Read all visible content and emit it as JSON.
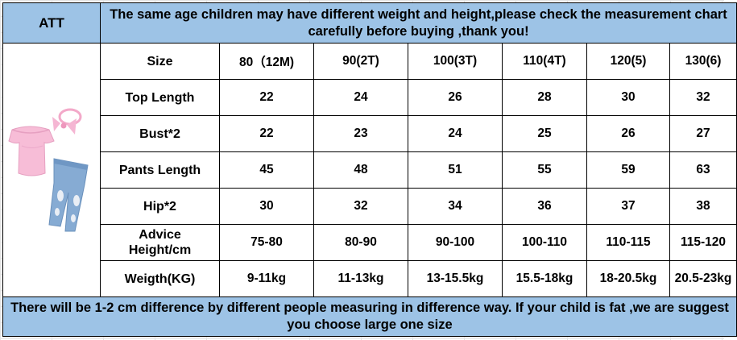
{
  "brand": "ATT",
  "header_notice": "The same age children may have different weight and height,please check the measurement chart carefully before buying ,thank you!",
  "footer_notice": "There will be 1-2 cm difference by different people measuring in difference way. If your child is fat ,we are suggest you choose large one size",
  "table": {
    "columns": [
      "80（12M)",
      "90(2T)",
      "100(3T)",
      "110(4T)",
      "120(5)",
      "130(6)"
    ],
    "rows": [
      {
        "label": "Size",
        "values": []
      },
      {
        "label": "Top Length",
        "values": [
          "22",
          "24",
          "26",
          "28",
          "30",
          "32"
        ]
      },
      {
        "label": "Bust*2",
        "values": [
          "22",
          "23",
          "24",
          "25",
          "26",
          "27"
        ]
      },
      {
        "label": "Pants Length",
        "values": [
          "45",
          "48",
          "51",
          "55",
          "59",
          "63"
        ]
      },
      {
        "label": "Hip*2",
        "values": [
          "30",
          "32",
          "34",
          "36",
          "37",
          "38"
        ]
      },
      {
        "label_line1": "Advice",
        "label_line2": "Height/cm",
        "values": [
          "75-80",
          "80-90",
          "90-100",
          "100-110",
          "110-115",
          "115-120"
        ]
      },
      {
        "label": "Weigth(KG)",
        "values": [
          "9-11kg",
          "11-13kg",
          "13-15.5kg",
          "15.5-18kg",
          "18-20.5kg",
          "20.5-23kg"
        ]
      }
    ]
  },
  "product_image": {
    "icons": [
      "pink-top-icon",
      "headband-bow-icon",
      "ripped-jeans-icon"
    ],
    "colors": {
      "top": "#f5b6d3",
      "jeans": "#7fa6cf",
      "header_bg": "#9dc3e6",
      "notice_text": "#ff0000"
    }
  }
}
